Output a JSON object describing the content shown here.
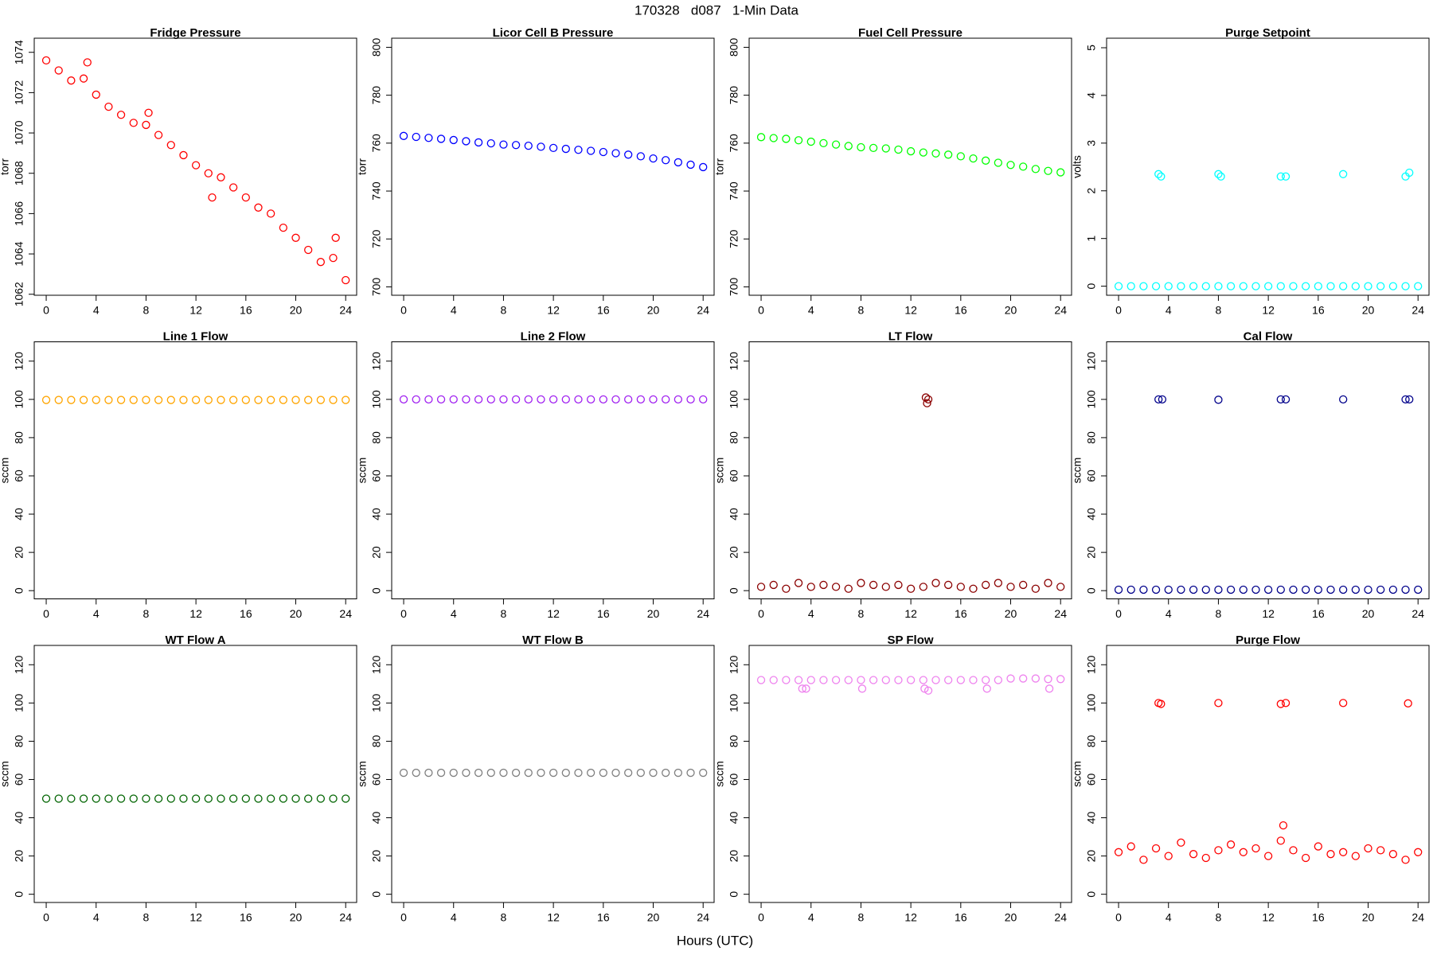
{
  "title": "170328   d087   1-Min Data",
  "xlabel": "Hours (UTC)",
  "chart_data": [
    {
      "type": "scatter",
      "title": "Fridge Pressure",
      "ylabel": "torr",
      "color": "#ff0000",
      "x": [
        0,
        1,
        2,
        3,
        4,
        5,
        6,
        7,
        8,
        9,
        10,
        11,
        12,
        13,
        14,
        15,
        16,
        17,
        18,
        19,
        20,
        21,
        22,
        23,
        24,
        3.3,
        8.2,
        13.3,
        23.2
      ],
      "values": [
        1073.6,
        1073.1,
        1072.6,
        1072.7,
        1071.9,
        1071.3,
        1070.9,
        1070.5,
        1070.4,
        1069.9,
        1069.4,
        1068.9,
        1068.4,
        1068.0,
        1067.8,
        1067.3,
        1066.8,
        1066.3,
        1066.0,
        1065.3,
        1064.8,
        1064.2,
        1063.6,
        1063.8,
        1062.7,
        1073.5,
        1071.0,
        1066.8,
        1064.8
      ],
      "xlim": [
        -0.96,
        24.88
      ],
      "ylim": [
        1061.95,
        1074.7
      ],
      "xticks": [
        0,
        4,
        8,
        12,
        16,
        20,
        24
      ],
      "yticks": [
        1062,
        1064,
        1066,
        1068,
        1070,
        1072,
        1074
      ]
    },
    {
      "type": "scatter",
      "title": "Licor Cell B Pressure",
      "ylabel": "torr",
      "color": "#0000ff",
      "x": [
        0,
        1,
        2,
        3,
        4,
        5,
        6,
        7,
        8,
        9,
        10,
        11,
        12,
        13,
        14,
        15,
        16,
        17,
        18,
        19,
        20,
        21,
        22,
        23,
        24
      ],
      "values": [
        763,
        762.6,
        762.2,
        761.8,
        761.3,
        760.8,
        760.3,
        759.9,
        759.4,
        759.2,
        758.9,
        758.5,
        758,
        757.6,
        757.2,
        756.8,
        756.3,
        755.8,
        755.2,
        754.5,
        753.6,
        752.9,
        752,
        751,
        750
      ],
      "xlim": [
        -0.96,
        24.88
      ],
      "ylim": [
        696.5,
        803.8
      ],
      "xticks": [
        0,
        4,
        8,
        12,
        16,
        20,
        24
      ],
      "yticks": [
        700,
        720,
        740,
        760,
        780,
        800
      ]
    },
    {
      "type": "scatter",
      "title": "Fuel Cell Pressure",
      "ylabel": "torr",
      "color": "#00ff00",
      "x": [
        0,
        1,
        2,
        3,
        4,
        5,
        6,
        7,
        8,
        9,
        10,
        11,
        12,
        13,
        14,
        15,
        16,
        17,
        18,
        19,
        20,
        21,
        22,
        23,
        24
      ],
      "values": [
        762.5,
        762.1,
        761.8,
        761.2,
        760.6,
        760,
        759.4,
        758.8,
        758.3,
        758,
        757.8,
        757.3,
        756.6,
        756.1,
        755.7,
        755.2,
        754.5,
        753.6,
        752.7,
        751.8,
        750.9,
        750.2,
        749.2,
        748.4,
        747.8
      ],
      "xlim": [
        -0.96,
        24.88
      ],
      "ylim": [
        696.5,
        803.8
      ],
      "xticks": [
        0,
        4,
        8,
        12,
        16,
        20,
        24
      ],
      "yticks": [
        700,
        720,
        740,
        760,
        780,
        800
      ]
    },
    {
      "type": "scatter",
      "title": "Purge Setpoint",
      "ylabel": "volts",
      "color": "#00ffff",
      "x": [
        0,
        1,
        2,
        3,
        4,
        5,
        6,
        7,
        8,
        9,
        10,
        11,
        12,
        13,
        14,
        15,
        16,
        17,
        18,
        19,
        20,
        21,
        22,
        23,
        24,
        3.2,
        3.4,
        8,
        8.2,
        13,
        13.4,
        18,
        23,
        23.3
      ],
      "values": [
        0,
        0,
        0,
        0,
        0,
        0,
        0,
        0,
        0,
        0,
        0,
        0,
        0,
        0,
        0,
        0,
        0,
        0,
        0,
        0,
        0,
        0,
        0,
        0,
        0,
        2.35,
        2.3,
        2.35,
        2.3,
        2.3,
        2.3,
        2.35,
        2.3,
        2.38
      ],
      "xlim": [
        -0.96,
        24.88
      ],
      "ylim": [
        -0.19,
        5.2
      ],
      "xticks": [
        0,
        4,
        8,
        12,
        16,
        20,
        24
      ],
      "yticks": [
        0,
        1,
        2,
        3,
        4,
        5
      ]
    },
    {
      "type": "scatter",
      "title": "Line 1 Flow",
      "ylabel": "sccm",
      "color": "#ffa500",
      "x": [
        0,
        1,
        2,
        3,
        4,
        5,
        6,
        7,
        8,
        9,
        10,
        11,
        12,
        13,
        14,
        15,
        16,
        17,
        18,
        19,
        20,
        21,
        22,
        23,
        24
      ],
      "values": [
        99.7,
        99.7,
        99.7,
        99.7,
        99.7,
        99.7,
        99.7,
        99.7,
        99.7,
        99.7,
        99.7,
        99.7,
        99.7,
        99.7,
        99.7,
        99.7,
        99.7,
        99.7,
        99.7,
        99.7,
        99.7,
        99.7,
        99.7,
        99.7,
        99.7
      ],
      "xlim": [
        -0.96,
        24.88
      ],
      "ylim": [
        -4.3,
        130.1
      ],
      "xticks": [
        0,
        4,
        8,
        12,
        16,
        20,
        24
      ],
      "yticks": [
        0,
        20,
        40,
        60,
        80,
        100,
        120
      ]
    },
    {
      "type": "scatter",
      "title": "Line 2 Flow",
      "ylabel": "sccm",
      "color": "#a020f0",
      "x": [
        0,
        1,
        2,
        3,
        4,
        5,
        6,
        7,
        8,
        9,
        10,
        11,
        12,
        13,
        14,
        15,
        16,
        17,
        18,
        19,
        20,
        21,
        22,
        23,
        24
      ],
      "values": [
        100,
        100,
        100,
        100,
        100,
        100,
        100,
        100,
        100,
        100,
        100,
        100,
        100,
        100,
        100,
        100,
        100,
        100,
        100,
        100,
        100,
        100,
        100,
        100,
        100
      ],
      "xlim": [
        -0.96,
        24.88
      ],
      "ylim": [
        -4.3,
        130.1
      ],
      "xticks": [
        0,
        4,
        8,
        12,
        16,
        20,
        24
      ],
      "yticks": [
        0,
        20,
        40,
        60,
        80,
        100,
        120
      ]
    },
    {
      "type": "scatter",
      "title": "LT Flow",
      "ylabel": "sccm",
      "color": "#8b0000",
      "x": [
        0,
        1,
        2,
        3,
        4,
        5,
        6,
        7,
        8,
        9,
        10,
        11,
        12,
        13,
        14,
        15,
        16,
        17,
        18,
        19,
        20,
        21,
        22,
        23,
        24,
        13.2,
        13.3,
        13.4
      ],
      "values": [
        2,
        3,
        1,
        4,
        2,
        3,
        2,
        1,
        4,
        3,
        2,
        3,
        1,
        2,
        4,
        3,
        2,
        1,
        3,
        4,
        2,
        3,
        1,
        4,
        2,
        101,
        98,
        100
      ],
      "xlim": [
        -0.96,
        24.88
      ],
      "ylim": [
        -4.3,
        130.1
      ],
      "xticks": [
        0,
        4,
        8,
        12,
        16,
        20,
        24
      ],
      "yticks": [
        0,
        20,
        40,
        60,
        80,
        100,
        120
      ]
    },
    {
      "type": "scatter",
      "title": "Cal Flow",
      "ylabel": "sccm",
      "color": "#00008b",
      "x": [
        0,
        1,
        2,
        3,
        4,
        5,
        6,
        7,
        8,
        9,
        10,
        11,
        12,
        13,
        14,
        15,
        16,
        17,
        18,
        19,
        20,
        21,
        22,
        23,
        24,
        3.2,
        3.5,
        8,
        13,
        13.4,
        18,
        23,
        23.3
      ],
      "values": [
        0.5,
        0.5,
        0.5,
        0.5,
        0.5,
        0.5,
        0.5,
        0.5,
        0.5,
        0.5,
        0.5,
        0.5,
        0.5,
        0.5,
        0.5,
        0.5,
        0.5,
        0.5,
        0.5,
        0.5,
        0.5,
        0.5,
        0.5,
        0.5,
        0.5,
        100,
        100,
        99.8,
        100,
        100,
        100,
        100,
        100
      ],
      "xlim": [
        -0.96,
        24.88
      ],
      "ylim": [
        -4.3,
        130.1
      ],
      "xticks": [
        0,
        4,
        8,
        12,
        16,
        20,
        24
      ],
      "yticks": [
        0,
        20,
        40,
        60,
        80,
        100,
        120
      ]
    },
    {
      "type": "scatter",
      "title": "WT Flow A",
      "ylabel": "sccm",
      "color": "#006400",
      "x": [
        0,
        1,
        2,
        3,
        4,
        5,
        6,
        7,
        8,
        9,
        10,
        11,
        12,
        13,
        14,
        15,
        16,
        17,
        18,
        19,
        20,
        21,
        22,
        23,
        24
      ],
      "values": [
        50,
        50,
        50,
        50,
        50,
        50,
        50,
        50,
        50,
        50,
        50,
        50,
        50,
        50,
        50,
        50,
        50,
        50,
        50,
        50,
        50,
        50,
        50,
        50,
        50
      ],
      "xlim": [
        -0.96,
        24.88
      ],
      "ylim": [
        -4.3,
        130.1
      ],
      "xticks": [
        0,
        4,
        8,
        12,
        16,
        20,
        24
      ],
      "yticks": [
        0,
        20,
        40,
        60,
        80,
        100,
        120
      ]
    },
    {
      "type": "scatter",
      "title": "WT Flow B",
      "ylabel": "sccm",
      "color": "#808080",
      "x": [
        0,
        1,
        2,
        3,
        4,
        5,
        6,
        7,
        8,
        9,
        10,
        11,
        12,
        13,
        14,
        15,
        16,
        17,
        18,
        19,
        20,
        21,
        22,
        23,
        24
      ],
      "values": [
        63.5,
        63.5,
        63.5,
        63.5,
        63.5,
        63.5,
        63.5,
        63.5,
        63.5,
        63.5,
        63.5,
        63.5,
        63.5,
        63.5,
        63.5,
        63.5,
        63.5,
        63.5,
        63.5,
        63.5,
        63.5,
        63.5,
        63.5,
        63.5,
        63.5
      ],
      "xlim": [
        -0.96,
        24.88
      ],
      "ylim": [
        -4.3,
        130.1
      ],
      "xticks": [
        0,
        4,
        8,
        12,
        16,
        20,
        24
      ],
      "yticks": [
        0,
        20,
        40,
        60,
        80,
        100,
        120
      ]
    },
    {
      "type": "scatter",
      "title": "SP Flow",
      "ylabel": "sccm",
      "color": "#ee82ee",
      "x": [
        0,
        1,
        2,
        3,
        4,
        5,
        6,
        7,
        8,
        9,
        10,
        11,
        12,
        13,
        14,
        15,
        16,
        17,
        18,
        19,
        20,
        21,
        22,
        23,
        24,
        3.3,
        3.6,
        8.1,
        13.1,
        13.4,
        18.1,
        23.1
      ],
      "values": [
        112,
        112,
        112,
        112,
        112,
        112,
        112,
        112,
        112,
        112,
        112,
        112,
        112,
        112,
        112,
        112,
        112,
        112,
        112,
        112,
        112.8,
        112.8,
        112.8,
        112.5,
        112.5,
        107.5,
        107.5,
        107.5,
        107.5,
        106.5,
        107.5,
        107.5
      ],
      "xlim": [
        -0.96,
        24.88
      ],
      "ylim": [
        -4.3,
        130.1
      ],
      "xticks": [
        0,
        4,
        8,
        12,
        16,
        20,
        24
      ],
      "yticks": [
        0,
        20,
        40,
        60,
        80,
        100,
        120
      ]
    },
    {
      "type": "scatter",
      "title": "Purge Flow",
      "ylabel": "sccm",
      "color": "#ff0000",
      "x": [
        0,
        1,
        2,
        3,
        4,
        5,
        6,
        7,
        8,
        9,
        10,
        11,
        12,
        13,
        14,
        15,
        16,
        17,
        18,
        19,
        20,
        21,
        22,
        23,
        24,
        13.2,
        3.2,
        3.4,
        8,
        13,
        13.4,
        18,
        23.2
      ],
      "values": [
        22,
        25,
        18,
        24,
        20,
        27,
        21,
        19,
        23,
        26,
        22,
        24,
        20,
        28,
        23,
        19,
        25,
        21,
        22,
        20,
        24,
        23,
        21,
        18,
        22,
        36,
        100,
        99.5,
        100,
        99.5,
        100,
        100,
        99.8
      ],
      "xlim": [
        -0.96,
        24.88
      ],
      "ylim": [
        -4.3,
        130.1
      ],
      "xticks": [
        0,
        4,
        8,
        12,
        16,
        20,
        24
      ],
      "yticks": [
        0,
        20,
        40,
        60,
        80,
        100,
        120
      ]
    }
  ]
}
